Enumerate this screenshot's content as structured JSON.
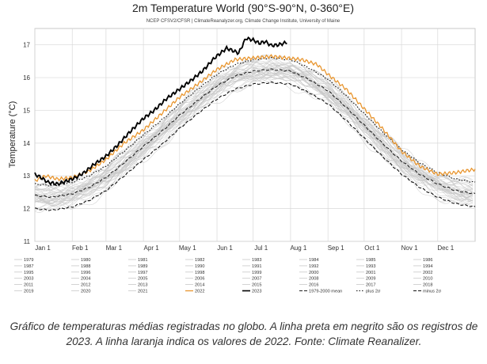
{
  "caption": "Gráfico de temperaturas médias registradas no globo. A linha preta em negrito são os registros de 2023. A linha laranja indica os valores de 2022. Fonte: Climate Reanalizer.",
  "chart_data": {
    "type": "line",
    "title": "2m Temperature World (90°S-90°N, 0-360°E)",
    "subtitle": "NCEP CFSV2/CFSR | ClimateReanalyzer.org, Climate Change Institute, University of Maine",
    "ylabel": "Temperature (°C)",
    "xlabel": "",
    "xlim": [
      1,
      366
    ],
    "ylim": [
      11,
      17.5
    ],
    "yticks": [
      11,
      12,
      13,
      14,
      15,
      16,
      17
    ],
    "grid": true,
    "xticks": [
      {
        "label": "Jan 1",
        "day": 1
      },
      {
        "label": "Feb 1",
        "day": 32
      },
      {
        "label": "Mar 1",
        "day": 60
      },
      {
        "label": "Apr 1",
        "day": 91
      },
      {
        "label": "May 1",
        "day": 121
      },
      {
        "label": "Jun 1",
        "day": 152
      },
      {
        "label": "Jul 1",
        "day": 182
      },
      {
        "label": "Aug 1",
        "day": 213
      },
      {
        "label": "Sep 1",
        "day": 244
      },
      {
        "label": "Oct 1",
        "day": 274
      },
      {
        "label": "Nov 1",
        "day": 305
      },
      {
        "label": "Dec 1",
        "day": 335
      }
    ],
    "colors": {
      "background_years": "#c8c8c8",
      "y2022": "#e8952e",
      "y2023": "#000000",
      "mean": "#222222"
    },
    "series": [
      {
        "name": "1979-2000 mean",
        "style": "dashed",
        "x": [
          1,
          15,
          32,
          46,
          60,
          75,
          91,
          106,
          121,
          136,
          152,
          167,
          182,
          197,
          213,
          228,
          244,
          259,
          274,
          289,
          305,
          320,
          335,
          350,
          366
        ],
        "values": [
          12.4,
          12.35,
          12.45,
          12.65,
          12.95,
          13.4,
          13.9,
          14.35,
          14.85,
          15.3,
          15.75,
          16.05,
          16.2,
          16.25,
          16.2,
          15.95,
          15.6,
          15.1,
          14.55,
          14.0,
          13.45,
          13.05,
          12.75,
          12.55,
          12.45
        ]
      },
      {
        "name": "plus 2σ",
        "style": "dotted",
        "x": [
          1,
          15,
          32,
          46,
          60,
          75,
          91,
          106,
          121,
          136,
          152,
          167,
          182,
          197,
          213,
          228,
          244,
          259,
          274,
          289,
          305,
          320,
          335,
          350,
          366
        ],
        "values": [
          12.75,
          12.7,
          12.8,
          13.0,
          13.3,
          13.75,
          14.25,
          14.7,
          15.2,
          15.65,
          16.1,
          16.4,
          16.55,
          16.6,
          16.55,
          16.3,
          15.95,
          15.45,
          14.9,
          14.35,
          13.8,
          13.4,
          13.1,
          12.9,
          12.8
        ]
      },
      {
        "name": "minus 2σ",
        "style": "dashed",
        "x": [
          1,
          15,
          32,
          46,
          60,
          75,
          91,
          106,
          121,
          136,
          152,
          167,
          182,
          197,
          213,
          228,
          244,
          259,
          274,
          289,
          305,
          320,
          335,
          350,
          366
        ],
        "values": [
          12.0,
          11.95,
          12.05,
          12.25,
          12.55,
          13.0,
          13.5,
          13.95,
          14.45,
          14.9,
          15.35,
          15.65,
          15.8,
          15.85,
          15.8,
          15.55,
          15.2,
          14.7,
          14.15,
          13.6,
          13.05,
          12.65,
          12.35,
          12.15,
          12.05
        ]
      },
      {
        "name": "2022",
        "style": "solid",
        "x": [
          1,
          10,
          20,
          32,
          46,
          60,
          75,
          91,
          106,
          121,
          136,
          152,
          167,
          182,
          197,
          210,
          222,
          235,
          244,
          259,
          274,
          289,
          305,
          320,
          335,
          350,
          366
        ],
        "values": [
          12.85,
          13.0,
          12.9,
          12.95,
          13.15,
          13.5,
          14.0,
          14.4,
          14.9,
          15.4,
          15.8,
          16.25,
          16.55,
          16.6,
          16.65,
          16.6,
          16.55,
          16.4,
          16.1,
          15.65,
          15.05,
          14.45,
          13.75,
          13.3,
          13.05,
          13.1,
          13.2
        ]
      },
      {
        "name": "2023",
        "style": "solid",
        "x": [
          1,
          6,
          12,
          20,
          28,
          35,
          42,
          50,
          60,
          70,
          80,
          91,
          100,
          110,
          121,
          130,
          140,
          150,
          160,
          170,
          176,
          182,
          187,
          192,
          197,
          203,
          210
        ],
        "values": [
          13.05,
          12.95,
          12.8,
          12.75,
          12.85,
          12.95,
          13.1,
          13.35,
          13.6,
          13.95,
          14.35,
          14.75,
          15.0,
          15.35,
          15.65,
          15.9,
          16.2,
          16.6,
          16.9,
          16.75,
          17.2,
          17.15,
          17.05,
          17.1,
          16.98,
          17.0,
          17.08
        ]
      }
    ],
    "legend": {
      "placement": "bottom",
      "entries": [
        "1979",
        "1980",
        "1981",
        "1982",
        "1983",
        "1984",
        "1985",
        "1986",
        "1987",
        "1988",
        "1989",
        "1990",
        "1991",
        "1992",
        "1993",
        "1994",
        "1995",
        "1996",
        "1997",
        "1998",
        "1999",
        "2000",
        "2001",
        "2002",
        "2003",
        "2004",
        "2005",
        "2006",
        "2007",
        "2008",
        "2009",
        "2010",
        "2011",
        "2012",
        "2013",
        "2014",
        "2015",
        "2016",
        "2017",
        "2018",
        "2019",
        "2020",
        "2021",
        "2022",
        "2023",
        "1979-2000 mean",
        "plus 2σ",
        "minus 2σ"
      ]
    }
  }
}
